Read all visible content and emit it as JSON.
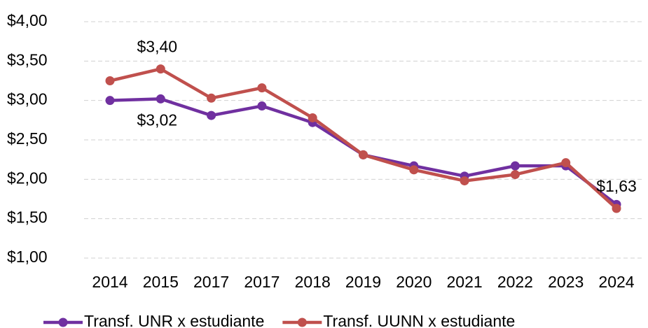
{
  "chart_data": {
    "type": "line",
    "categories": [
      "2014",
      "2015",
      "2017",
      "2017",
      "2018",
      "2019",
      "2020",
      "2021",
      "2022",
      "2023",
      "2024"
    ],
    "series": [
      {
        "name": "Transf. UNR x estudiante",
        "color": "#7030a0",
        "values": [
          3.0,
          3.02,
          2.81,
          2.93,
          2.72,
          2.31,
          2.17,
          2.04,
          2.17,
          2.17,
          1.68
        ],
        "value_labels": [
          null,
          "$3,02",
          null,
          null,
          null,
          null,
          null,
          null,
          null,
          null,
          null
        ]
      },
      {
        "name": "Transf. UUNN x estudiante",
        "color": "#c0504d",
        "values": [
          3.25,
          3.4,
          3.03,
          3.16,
          2.78,
          2.31,
          2.12,
          1.98,
          2.06,
          2.21,
          1.63
        ],
        "value_labels": [
          null,
          "$3,40",
          null,
          null,
          null,
          null,
          null,
          null,
          null,
          null,
          "$1,63"
        ]
      }
    ],
    "ylim": [
      1,
      4
    ],
    "yticks": [
      {
        "value": 1,
        "label": "$1,00"
      },
      {
        "value": 1.5,
        "label": "$1,50"
      },
      {
        "value": 2,
        "label": "$2,00"
      },
      {
        "value": 2.5,
        "label": "$2,50"
      },
      {
        "value": 3,
        "label": "$3,00"
      },
      {
        "value": 3.5,
        "label": "$3,50"
      },
      {
        "value": 4,
        "label": "$4,00"
      }
    ],
    "grid": true,
    "legend": "bottom"
  }
}
